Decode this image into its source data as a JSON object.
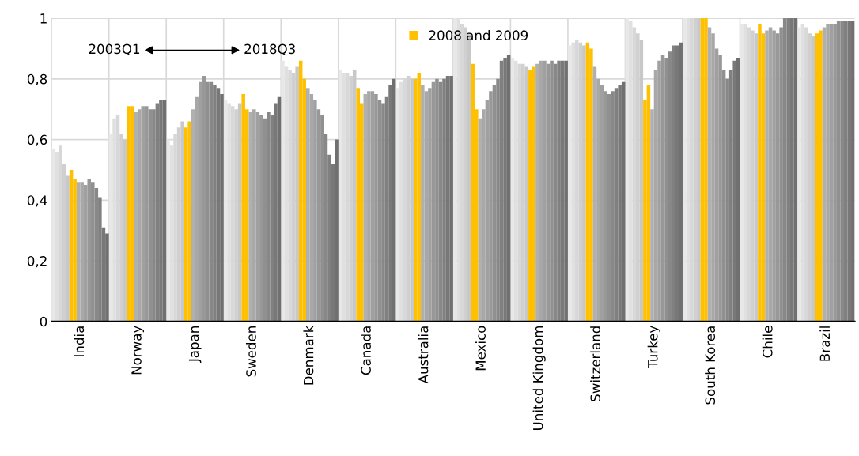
{
  "chart_data": {
    "type": "bar",
    "categories": [
      "India",
      "Norway",
      "Japan",
      "Sweden",
      "Denmark",
      "Canada",
      "Australia",
      "Mexico",
      "United Kingdom",
      "Switzerland",
      "Turkey",
      "South Korea",
      "Chile",
      "Brazil"
    ],
    "series": [
      {
        "color": "#e8e8e8",
        "values": [
          0.57,
          0.62,
          0.6,
          0.73,
          0.86,
          0.83,
          0.77,
          1.0,
          0.87,
          0.91,
          1.0,
          1.0,
          0.98,
          0.97
        ]
      },
      {
        "color": "#e0e0e0",
        "values": [
          0.56,
          0.67,
          0.58,
          0.72,
          0.84,
          0.82,
          0.79,
          1.0,
          0.86,
          0.92,
          0.99,
          1.0,
          0.98,
          0.98
        ]
      },
      {
        "color": "#d8d8d8",
        "values": [
          0.58,
          0.68,
          0.62,
          0.71,
          0.83,
          0.82,
          0.8,
          0.98,
          0.85,
          0.93,
          0.97,
          1.0,
          0.97,
          0.97
        ]
      },
      {
        "color": "#d0d0d0",
        "values": [
          0.52,
          0.62,
          0.64,
          0.7,
          0.82,
          0.81,
          0.81,
          0.97,
          0.85,
          0.92,
          0.95,
          1.0,
          0.96,
          0.95
        ]
      },
      {
        "color": "#c8c8c8",
        "values": [
          0.48,
          0.6,
          0.66,
          0.72,
          0.84,
          0.83,
          0.8,
          0.95,
          0.84,
          0.91,
          0.93,
          1.0,
          0.95,
          0.94
        ]
      },
      {
        "name": "2008 and 2009",
        "color": "#ffc000",
        "values": [
          0.5,
          0.71,
          0.64,
          0.75,
          0.86,
          0.77,
          0.8,
          0.85,
          0.83,
          0.92,
          0.73,
          1.0,
          0.98,
          0.95
        ]
      },
      {
        "color": "#ffc000",
        "values": [
          0.47,
          0.71,
          0.66,
          0.7,
          0.8,
          0.72,
          0.82,
          0.7,
          0.84,
          0.9,
          0.78,
          1.0,
          0.95,
          0.96
        ]
      },
      {
        "color": "#b0b0b0",
        "values": [
          0.46,
          0.69,
          0.7,
          0.69,
          0.77,
          0.75,
          0.78,
          0.67,
          0.85,
          0.84,
          0.7,
          0.97,
          0.96,
          0.97
        ]
      },
      {
        "color": "#a8a8a8",
        "values": [
          0.46,
          0.7,
          0.74,
          0.7,
          0.75,
          0.76,
          0.76,
          0.7,
          0.86,
          0.8,
          0.83,
          0.95,
          0.97,
          0.98
        ]
      },
      {
        "color": "#a0a0a0",
        "values": [
          0.45,
          0.71,
          0.79,
          0.69,
          0.73,
          0.76,
          0.77,
          0.73,
          0.86,
          0.78,
          0.86,
          0.9,
          0.96,
          0.98
        ]
      },
      {
        "color": "#989898",
        "values": [
          0.47,
          0.71,
          0.81,
          0.68,
          0.7,
          0.75,
          0.79,
          0.76,
          0.85,
          0.76,
          0.88,
          0.88,
          0.95,
          0.98
        ]
      },
      {
        "color": "#909090",
        "values": [
          0.46,
          0.7,
          0.79,
          0.67,
          0.68,
          0.73,
          0.8,
          0.78,
          0.86,
          0.75,
          0.87,
          0.83,
          0.97,
          0.99
        ]
      },
      {
        "color": "#888888",
        "values": [
          0.44,
          0.7,
          0.79,
          0.69,
          0.62,
          0.72,
          0.79,
          0.8,
          0.85,
          0.76,
          0.89,
          0.8,
          1.0,
          0.99
        ]
      },
      {
        "color": "#808080",
        "values": [
          0.41,
          0.72,
          0.78,
          0.68,
          0.55,
          0.74,
          0.8,
          0.86,
          0.86,
          0.77,
          0.91,
          0.83,
          1.0,
          0.99
        ]
      },
      {
        "color": "#787878",
        "values": [
          0.31,
          0.73,
          0.77,
          0.72,
          0.52,
          0.78,
          0.81,
          0.87,
          0.86,
          0.78,
          0.91,
          0.86,
          1.0,
          0.99
        ]
      },
      {
        "color": "#707070",
        "values": [
          0.29,
          0.73,
          0.75,
          0.74,
          0.6,
          0.8,
          0.81,
          0.88,
          0.86,
          0.79,
          0.92,
          0.87,
          1.0,
          0.99
        ]
      }
    ],
    "ylim": [
      0,
      1
    ],
    "yticks": [
      {
        "value": 0,
        "label": "0"
      },
      {
        "value": 0.2,
        "label": "0,2"
      },
      {
        "value": 0.4,
        "label": "0,4"
      },
      {
        "value": 0.6,
        "label": "0,6"
      },
      {
        "value": 0.8,
        "label": "0,8"
      },
      {
        "value": 1,
        "label": "1"
      }
    ],
    "grid": true,
    "legend": "top",
    "annotations": [
      "2003Q1",
      "2018Q3"
    ]
  }
}
